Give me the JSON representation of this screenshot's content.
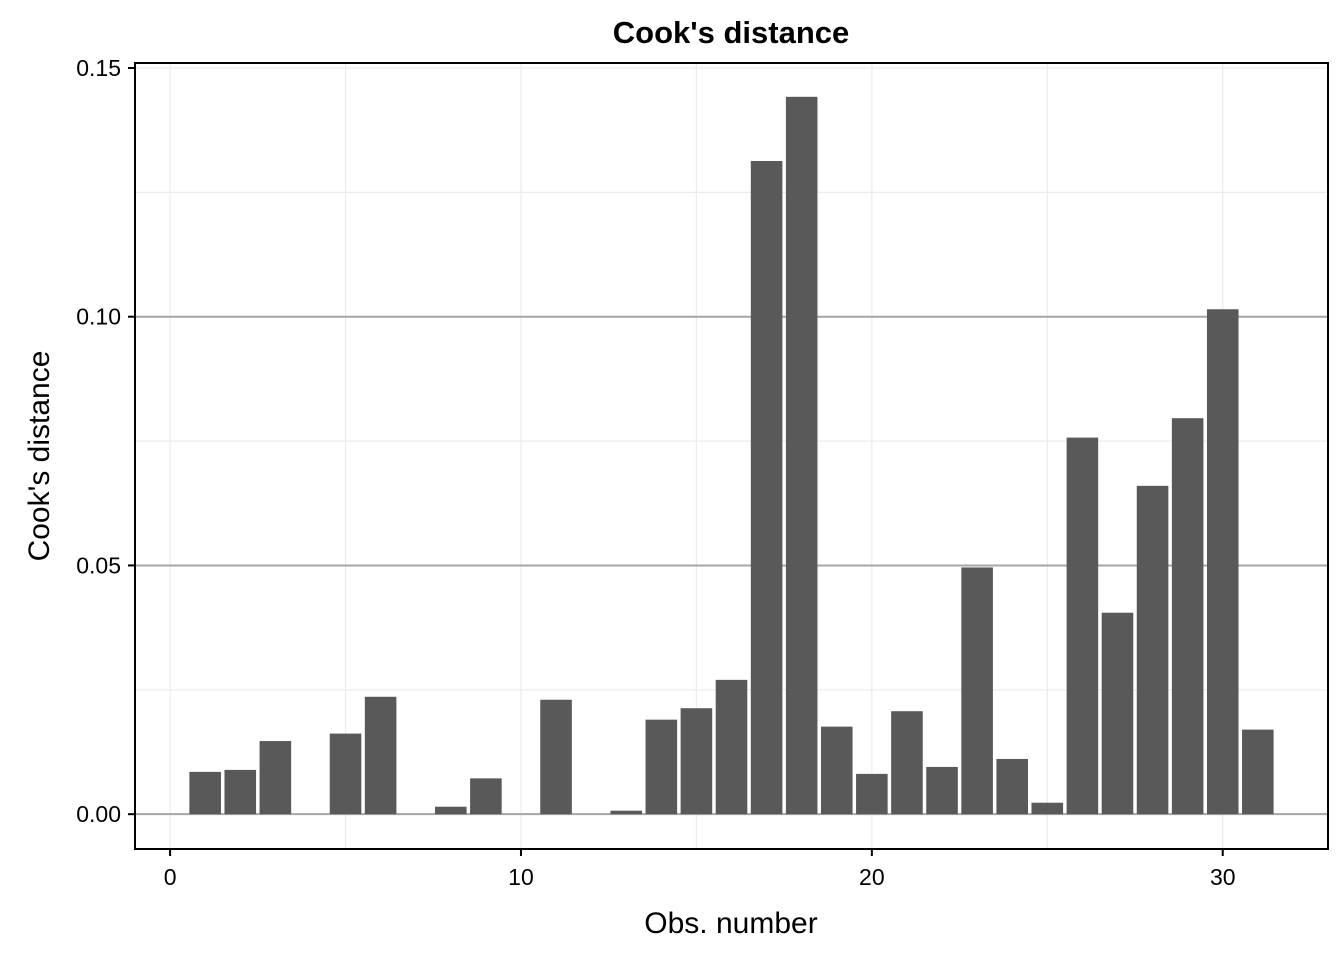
{
  "chart_data": {
    "type": "bar",
    "title": "Cook's distance",
    "xlabel": "Obs. number",
    "ylabel": "Cook's distance",
    "x": [
      1,
      2,
      3,
      4,
      5,
      6,
      7,
      8,
      9,
      10,
      11,
      12,
      13,
      14,
      15,
      16,
      17,
      18,
      19,
      20,
      21,
      22,
      23,
      24,
      25,
      26,
      27,
      28,
      29,
      30,
      31
    ],
    "values": [
      0.0085,
      0.0089,
      0.0147,
      0.0,
      0.0162,
      0.0236,
      0.0,
      0.0015,
      0.0072,
      0.0,
      0.023,
      0.0,
      0.0007,
      0.019,
      0.0213,
      0.027,
      0.1313,
      0.1442,
      0.0176,
      0.0081,
      0.0207,
      0.0095,
      0.0496,
      0.0111,
      0.0023,
      0.0757,
      0.0405,
      0.066,
      0.0796,
      0.1015,
      0.017
    ],
    "xlim": [
      -1,
      33
    ],
    "ylim": [
      -0.007,
      0.151
    ],
    "x_ticks": [
      0,
      10,
      20,
      30
    ],
    "x_tick_labels": [
      "0",
      "10",
      "20",
      "30"
    ],
    "y_ticks": [
      0.0,
      0.05,
      0.1,
      0.15
    ],
    "y_tick_labels": [
      "0.00",
      "0.05",
      "0.10",
      "0.15"
    ],
    "reference_lines": [
      0.0,
      0.05,
      0.1
    ],
    "grid": true,
    "legend": "none",
    "colors": {
      "bar": "#595959",
      "reference_line": "#a6a6a6",
      "grid": "#ebebeb",
      "panel_border": "#000000"
    }
  }
}
